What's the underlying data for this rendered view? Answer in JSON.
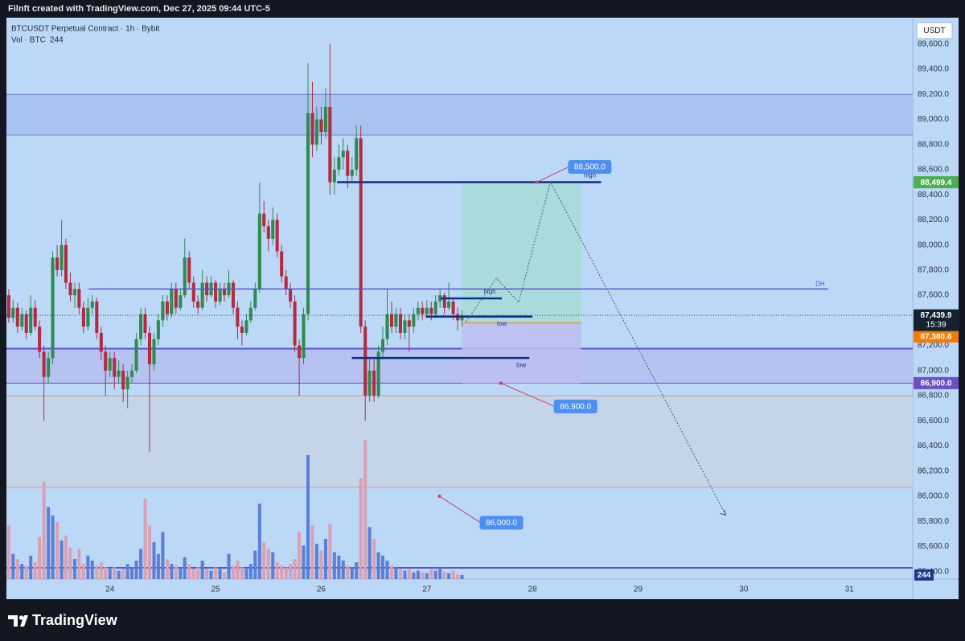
{
  "header": "Filnft created with TradingView.com, Dec 27, 2025 09:44 UTC-5",
  "footer": {
    "brand": "TradingView"
  },
  "chart_data": {
    "type": "candlestick",
    "title": "BTCUSDT Perpetual Contract · 1h · Bybit",
    "volume_label": "Vol · BTC",
    "currency": "USDT",
    "background": "#bcd8f7",
    "up_color": "#2e8b4f",
    "down_color": "#b22b40",
    "volume_up_color": "#5b7fd6",
    "volume_down_color": "#d9a0b4",
    "x": [
      23.042,
      23.083,
      23.125,
      23.167,
      23.208,
      23.25,
      23.292,
      23.333,
      23.375,
      23.417,
      23.458,
      23.5,
      23.542,
      23.583,
      23.625,
      23.667,
      23.708,
      23.75,
      23.792,
      23.833,
      23.875,
      23.917,
      23.958,
      24,
      24.042,
      24.083,
      24.125,
      24.167,
      24.208,
      24.25,
      24.292,
      24.333,
      24.375,
      24.417,
      24.458,
      24.5,
      24.542,
      24.583,
      24.625,
      24.667,
      24.708,
      24.75,
      24.792,
      24.833,
      24.875,
      24.917,
      24.958,
      25,
      25.042,
      25.083,
      25.125,
      25.167,
      25.208,
      25.25,
      25.292,
      25.333,
      25.375,
      25.417,
      25.458,
      25.5,
      25.542,
      25.583,
      25.625,
      25.667,
      25.708,
      25.75,
      25.792,
      25.833,
      25.875,
      25.917,
      25.958,
      26,
      26.042,
      26.083,
      26.125,
      26.167,
      26.208,
      26.25,
      26.292,
      26.333,
      26.375,
      26.417,
      26.458,
      26.5,
      26.542,
      26.583,
      26.625,
      26.667,
      26.708,
      26.75,
      26.792,
      26.833,
      26.875,
      26.917,
      26.958,
      27,
      27.042,
      27.083,
      27.125,
      27.167,
      27.208,
      27.25,
      27.292,
      27.333
    ],
    "open": [
      87600,
      87420,
      87500,
      87350,
      87450,
      87300,
      87500,
      87350,
      87150,
      86950,
      87100,
      87900,
      87800,
      88000,
      87700,
      87600,
      87650,
      87500,
      87350,
      87500,
      87550,
      87300,
      87150,
      87000,
      87100,
      86950,
      87000,
      86850,
      86950,
      87000,
      87250,
      87450,
      87300,
      87050,
      87250,
      87400,
      87550,
      87450,
      87650,
      87500,
      87600,
      87900,
      87700,
      87550,
      87500,
      87700,
      87600,
      87700,
      87550,
      87650,
      87600,
      87700,
      87500,
      87350,
      87300,
      87400,
      87500,
      87650,
      88250,
      88150,
      88050,
      88200,
      87950,
      87750,
      87650,
      87550,
      87200,
      87100,
      87450,
      89050,
      88800,
      89000,
      88900,
      89100,
      88500,
      88600,
      88700,
      88750,
      88550,
      88600,
      88850,
      87350,
      86800,
      87000,
      86800,
      87150,
      87250,
      87450,
      87350,
      87450,
      87300,
      87400,
      87350,
      87450,
      87500,
      87450,
      87500,
      87450,
      87550,
      87600,
      87500,
      87550,
      87450,
      87400
    ],
    "high": [
      87650,
      87560,
      87540,
      87500,
      87480,
      87600,
      87560,
      87400,
      87200,
      87150,
      87950,
      88000,
      88200,
      88050,
      87780,
      87700,
      87700,
      87550,
      87580,
      87600,
      87580,
      87350,
      87200,
      87150,
      87150,
      87080,
      87050,
      87000,
      87050,
      87300,
      87500,
      87500,
      87350,
      87300,
      87450,
      87600,
      87600,
      87700,
      87700,
      87650,
      88050,
      87950,
      87750,
      87600,
      87800,
      87750,
      87750,
      87720,
      87700,
      87700,
      87800,
      87720,
      87550,
      87400,
      87450,
      87550,
      87700,
      88500,
      88350,
      88200,
      88300,
      88250,
      88000,
      87800,
      87700,
      87600,
      87250,
      87500,
      89450,
      89300,
      89100,
      89100,
      89250,
      89600,
      88700,
      88800,
      88850,
      88800,
      88700,
      88950,
      88950,
      87400,
      87100,
      87100,
      87200,
      87350,
      87650,
      87550,
      87500,
      87500,
      87450,
      87450,
      87500,
      87550,
      87550,
      87560,
      87550,
      87600,
      87650,
      87620,
      87700,
      87580,
      87500,
      87480
    ],
    "low": [
      87380,
      87380,
      87300,
      87320,
      87250,
      87280,
      87320,
      87100,
      86600,
      86900,
      87050,
      87750,
      87750,
      87650,
      87550,
      87500,
      87450,
      87300,
      87320,
      87450,
      87250,
      87080,
      86800,
      86950,
      86850,
      86900,
      86750,
      86700,
      86900,
      86980,
      87200,
      87250,
      86350,
      87000,
      87200,
      87350,
      87400,
      87420,
      87450,
      87480,
      87580,
      87650,
      87500,
      87450,
      87480,
      87550,
      87580,
      87500,
      87520,
      87550,
      87580,
      87450,
      87250,
      87200,
      87280,
      87380,
      87480,
      87620,
      88100,
      87950,
      88000,
      87900,
      87700,
      87600,
      87500,
      87150,
      86800,
      87050,
      87400,
      88700,
      88750,
      88800,
      88850,
      88400,
      88400,
      88550,
      88600,
      88450,
      88500,
      88550,
      87300,
      86600,
      86750,
      86750,
      86780,
      87100,
      87200,
      87300,
      87300,
      87250,
      87250,
      87150,
      87300,
      87400,
      87400,
      87420,
      87400,
      87420,
      87500,
      87450,
      87480,
      87400,
      87320,
      87350
    ],
    "close": [
      87420,
      87500,
      87350,
      87450,
      87300,
      87500,
      87350,
      87150,
      86950,
      87100,
      87900,
      87800,
      88000,
      87700,
      87600,
      87650,
      87500,
      87350,
      87500,
      87550,
      87300,
      87150,
      87000,
      87100,
      86950,
      87000,
      86850,
      86950,
      87000,
      87250,
      87450,
      87300,
      87050,
      87250,
      87400,
      87550,
      87450,
      87650,
      87500,
      87600,
      87900,
      87700,
      87550,
      87500,
      87700,
      87600,
      87700,
      87550,
      87650,
      87600,
      87700,
      87500,
      87350,
      87300,
      87400,
      87500,
      87650,
      88250,
      88150,
      88050,
      88200,
      87950,
      87750,
      87650,
      87550,
      87200,
      87100,
      87450,
      89050,
      88800,
      89000,
      88900,
      89100,
      88500,
      88600,
      88700,
      88750,
      88550,
      88600,
      88850,
      87350,
      86800,
      87000,
      86800,
      87150,
      87250,
      87450,
      87350,
      87450,
      87300,
      87400,
      87350,
      87450,
      87500,
      87450,
      87500,
      87450,
      87550,
      87600,
      87500,
      87550,
      87450,
      87400,
      87439.9
    ],
    "last_price_label": "87,439.9",
    "countdown": "15:39",
    "volume": [
      3200,
      1500,
      1200,
      900,
      800,
      1400,
      1000,
      2500,
      5800,
      4300,
      3800,
      3400,
      2300,
      2600,
      1900,
      1200,
      1800,
      900,
      1400,
      1100,
      800,
      1000,
      700,
      600,
      700,
      500,
      600,
      900,
      700,
      1100,
      1800,
      4800,
      3200,
      2200,
      1500,
      2800,
      1200,
      900,
      800,
      700,
      1300,
      900,
      600,
      700,
      1100,
      600,
      500,
      700,
      600,
      400,
      1500,
      800,
      1100,
      700,
      600,
      900,
      1700,
      4500,
      2200,
      1800,
      1600,
      1000,
      800,
      700,
      900,
      1200,
      2800,
      2000,
      7400,
      3200,
      2100,
      1700,
      2400,
      3300,
      1600,
      1400,
      1100,
      800,
      700,
      1000,
      6000,
      8300,
      3100,
      2400,
      1600,
      1400,
      1100,
      800,
      700,
      600,
      500,
      600,
      400,
      500,
      400,
      350,
      600,
      500,
      700,
      450,
      350,
      500,
      300,
      244
    ],
    "volume_ylim": [
      0,
      33500
    ],
    "xlim": [
      23.02,
      31.6
    ],
    "xticks": [
      24,
      25,
      26,
      27,
      28,
      29,
      30,
      31
    ],
    "ylim": [
      85340,
      89810
    ],
    "yticks": [
      {
        "value": 85400,
        "label": "85,400.0"
      },
      {
        "value": 85600,
        "label": "85,600.0"
      },
      {
        "value": 85800,
        "label": "85,800.0"
      },
      {
        "value": 86000,
        "label": "86,000.0"
      },
      {
        "value": 86200,
        "label": "86,200.0"
      },
      {
        "value": 86400,
        "label": "86,400.0"
      },
      {
        "value": 86600,
        "label": "86,600.0"
      },
      {
        "value": 86800,
        "label": "86,800.0"
      },
      {
        "value": 87000,
        "label": "87,000.0"
      },
      {
        "value": 87200,
        "label": "87,200.0"
      },
      {
        "value": 87400,
        "label": "87,400.0"
      },
      {
        "value": 87600,
        "label": "87,600.0"
      },
      {
        "value": 87800,
        "label": "87,800.0"
      },
      {
        "value": 88000,
        "label": "88,000.0"
      },
      {
        "value": 88200,
        "label": "88,200.0"
      },
      {
        "value": 88400,
        "label": "88,400.0"
      },
      {
        "value": 88600,
        "label": "88,600.0"
      },
      {
        "value": 88800,
        "label": "88,800.0"
      },
      {
        "value": 89000,
        "label": "89,000.0"
      },
      {
        "value": 89200,
        "label": "89,200.0"
      },
      {
        "value": 89400,
        "label": "89,400.0"
      },
      {
        "value": 89600,
        "label": "89,600.0"
      }
    ],
    "zones": [
      {
        "from": 89200,
        "to": 88875,
        "fill": "#a9c3f0",
        "border": "#7c7fd0"
      },
      {
        "from": 87175,
        "to": 86900,
        "fill": "#b6c2f0",
        "border": "#5a4fd0"
      },
      {
        "from": 86800,
        "to": 86070,
        "fill": "#c4d5ea",
        "border": "#dd9a86"
      }
    ],
    "hlines": [
      {
        "value": 85430,
        "color": "#5a4fd0"
      }
    ],
    "dh_level": {
      "value": 87650,
      "x": [
        23.8,
        30.8
      ],
      "label": "DH",
      "color": "#5b4fcf"
    },
    "levels": [
      {
        "value": 88500,
        "x": [
          26.15,
          28.65
        ],
        "label": "high"
      },
      {
        "value": 87575,
        "x": [
          27.13,
          27.71
        ],
        "label": "high"
      },
      {
        "value": 87430,
        "x": [
          26.99,
          28.0
        ],
        "label": "low"
      },
      {
        "value": 87100,
        "x": [
          26.29,
          27.97
        ],
        "label": "low"
      }
    ],
    "level_color": "#0d2f8a",
    "position": {
      "x": [
        27.33,
        28.46
      ],
      "target": {
        "value": 88499.4,
        "label": "88,499.4",
        "color": "#4caf50",
        "fill": "#a6dcd8"
      },
      "entry": {
        "value": 87380.8,
        "label": "87,380.8",
        "color": "#f57c00"
      },
      "stop": {
        "value": 86900,
        "label": "86,900.0",
        "color": "#6a4fc6",
        "fill": "#bcc0f0"
      }
    },
    "callouts": [
      {
        "x": 28.04,
        "value": 88500,
        "label": "88,500.0"
      },
      {
        "x": 27.7,
        "value": 86900,
        "label": "86,900.0"
      },
      {
        "x": 27.12,
        "value": 86000,
        "label": "86,000.0"
      }
    ],
    "projection": {
      "x": [
        27.37,
        27.66,
        27.87,
        28.17,
        29.83
      ],
      "y": [
        87390,
        87735,
        87543,
        88504,
        85850
      ]
    }
  }
}
